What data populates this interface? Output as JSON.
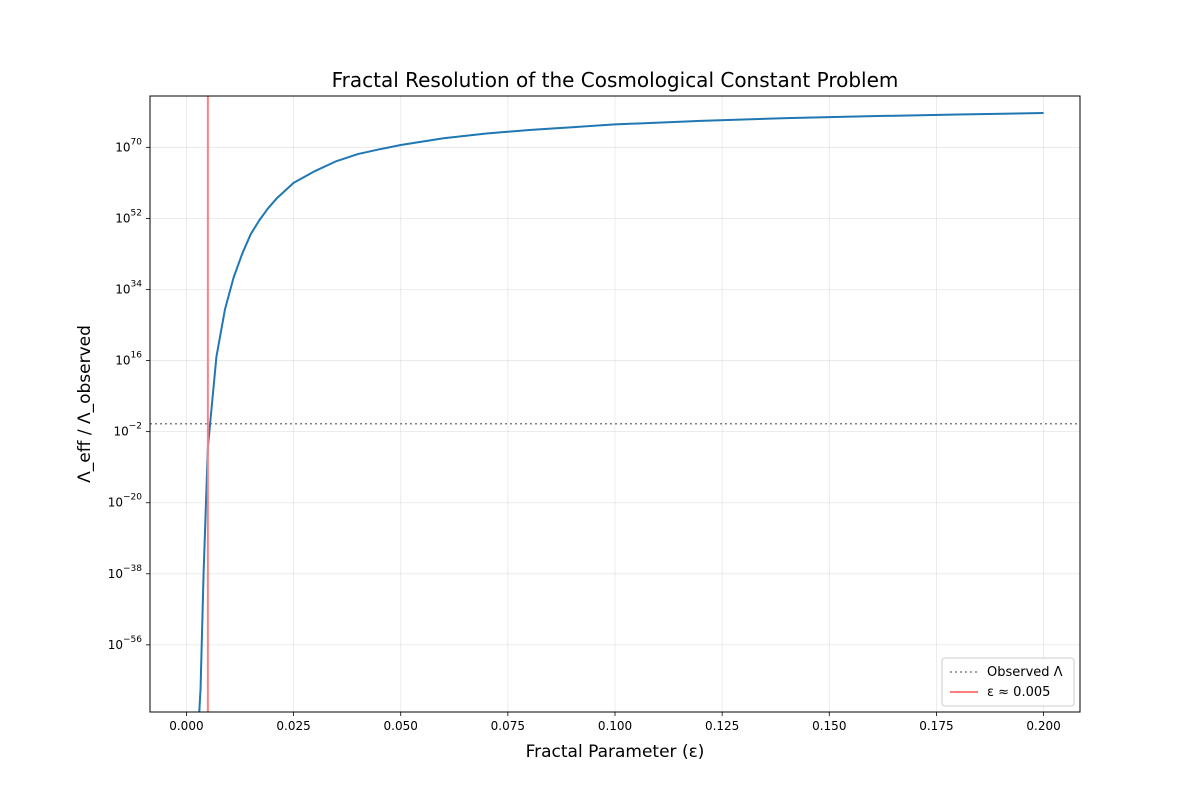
{
  "chart_data": {
    "type": "line",
    "title": "Fractal Resolution of the Cosmological Constant Problem",
    "xlabel": "Fractal Parameter (ε)",
    "ylabel": "Λ_eff / Λ_observed",
    "xlim": [
      -0.0085,
      0.2085
    ],
    "ylim_log10": [
      -73,
      83
    ],
    "yscale": "log",
    "grid": true,
    "legend_position": "lower-right",
    "x_ticks": [
      0.0,
      0.025,
      0.05,
      0.075,
      0.1,
      0.125,
      0.15,
      0.175,
      0.2
    ],
    "x_tick_labels": [
      "0.000",
      "0.025",
      "0.050",
      "0.075",
      "0.100",
      "0.125",
      "0.150",
      "0.175",
      "0.200"
    ],
    "y_ticks_log10": [
      -56,
      -38,
      -20,
      -2,
      16,
      34,
      52,
      70
    ],
    "y_tick_bases": [
      "10",
      "10",
      "10",
      "10",
      "10",
      "10",
      "10",
      "10"
    ],
    "y_tick_exponents": [
      "−56",
      "−38",
      "−20",
      "−2",
      "16",
      "34",
      "52",
      "70"
    ],
    "series": [
      {
        "label": "",
        "color": "#1f77b4",
        "style": "solid",
        "x": [
          0.003,
          0.0033,
          0.004,
          0.005,
          0.007,
          0.009,
          0.011,
          0.013,
          0.015,
          0.017,
          0.019,
          0.021,
          0.023,
          0.025,
          0.03,
          0.035,
          0.04,
          0.045,
          0.05,
          0.06,
          0.07,
          0.08,
          0.09,
          0.1,
          0.12,
          0.14,
          0.16,
          0.18,
          0.2
        ],
        "y_log10": [
          -73,
          -67,
          -38,
          -6,
          17,
          29,
          37,
          43,
          48,
          51.5,
          54.5,
          57,
          59,
          61,
          64,
          66.5,
          68.3,
          69.5,
          70.6,
          72.3,
          73.5,
          74.4,
          75.1,
          75.8,
          76.7,
          77.4,
          77.9,
          78.3,
          78.7
        ]
      },
      {
        "label": "Observed Λ",
        "color": "#808080",
        "style": "dotted",
        "y_log10_const": 0
      },
      {
        "label": "ε ≈ 0.005",
        "color": "#ff7f7f",
        "style": "solid",
        "x_const": 0.005
      }
    ]
  }
}
